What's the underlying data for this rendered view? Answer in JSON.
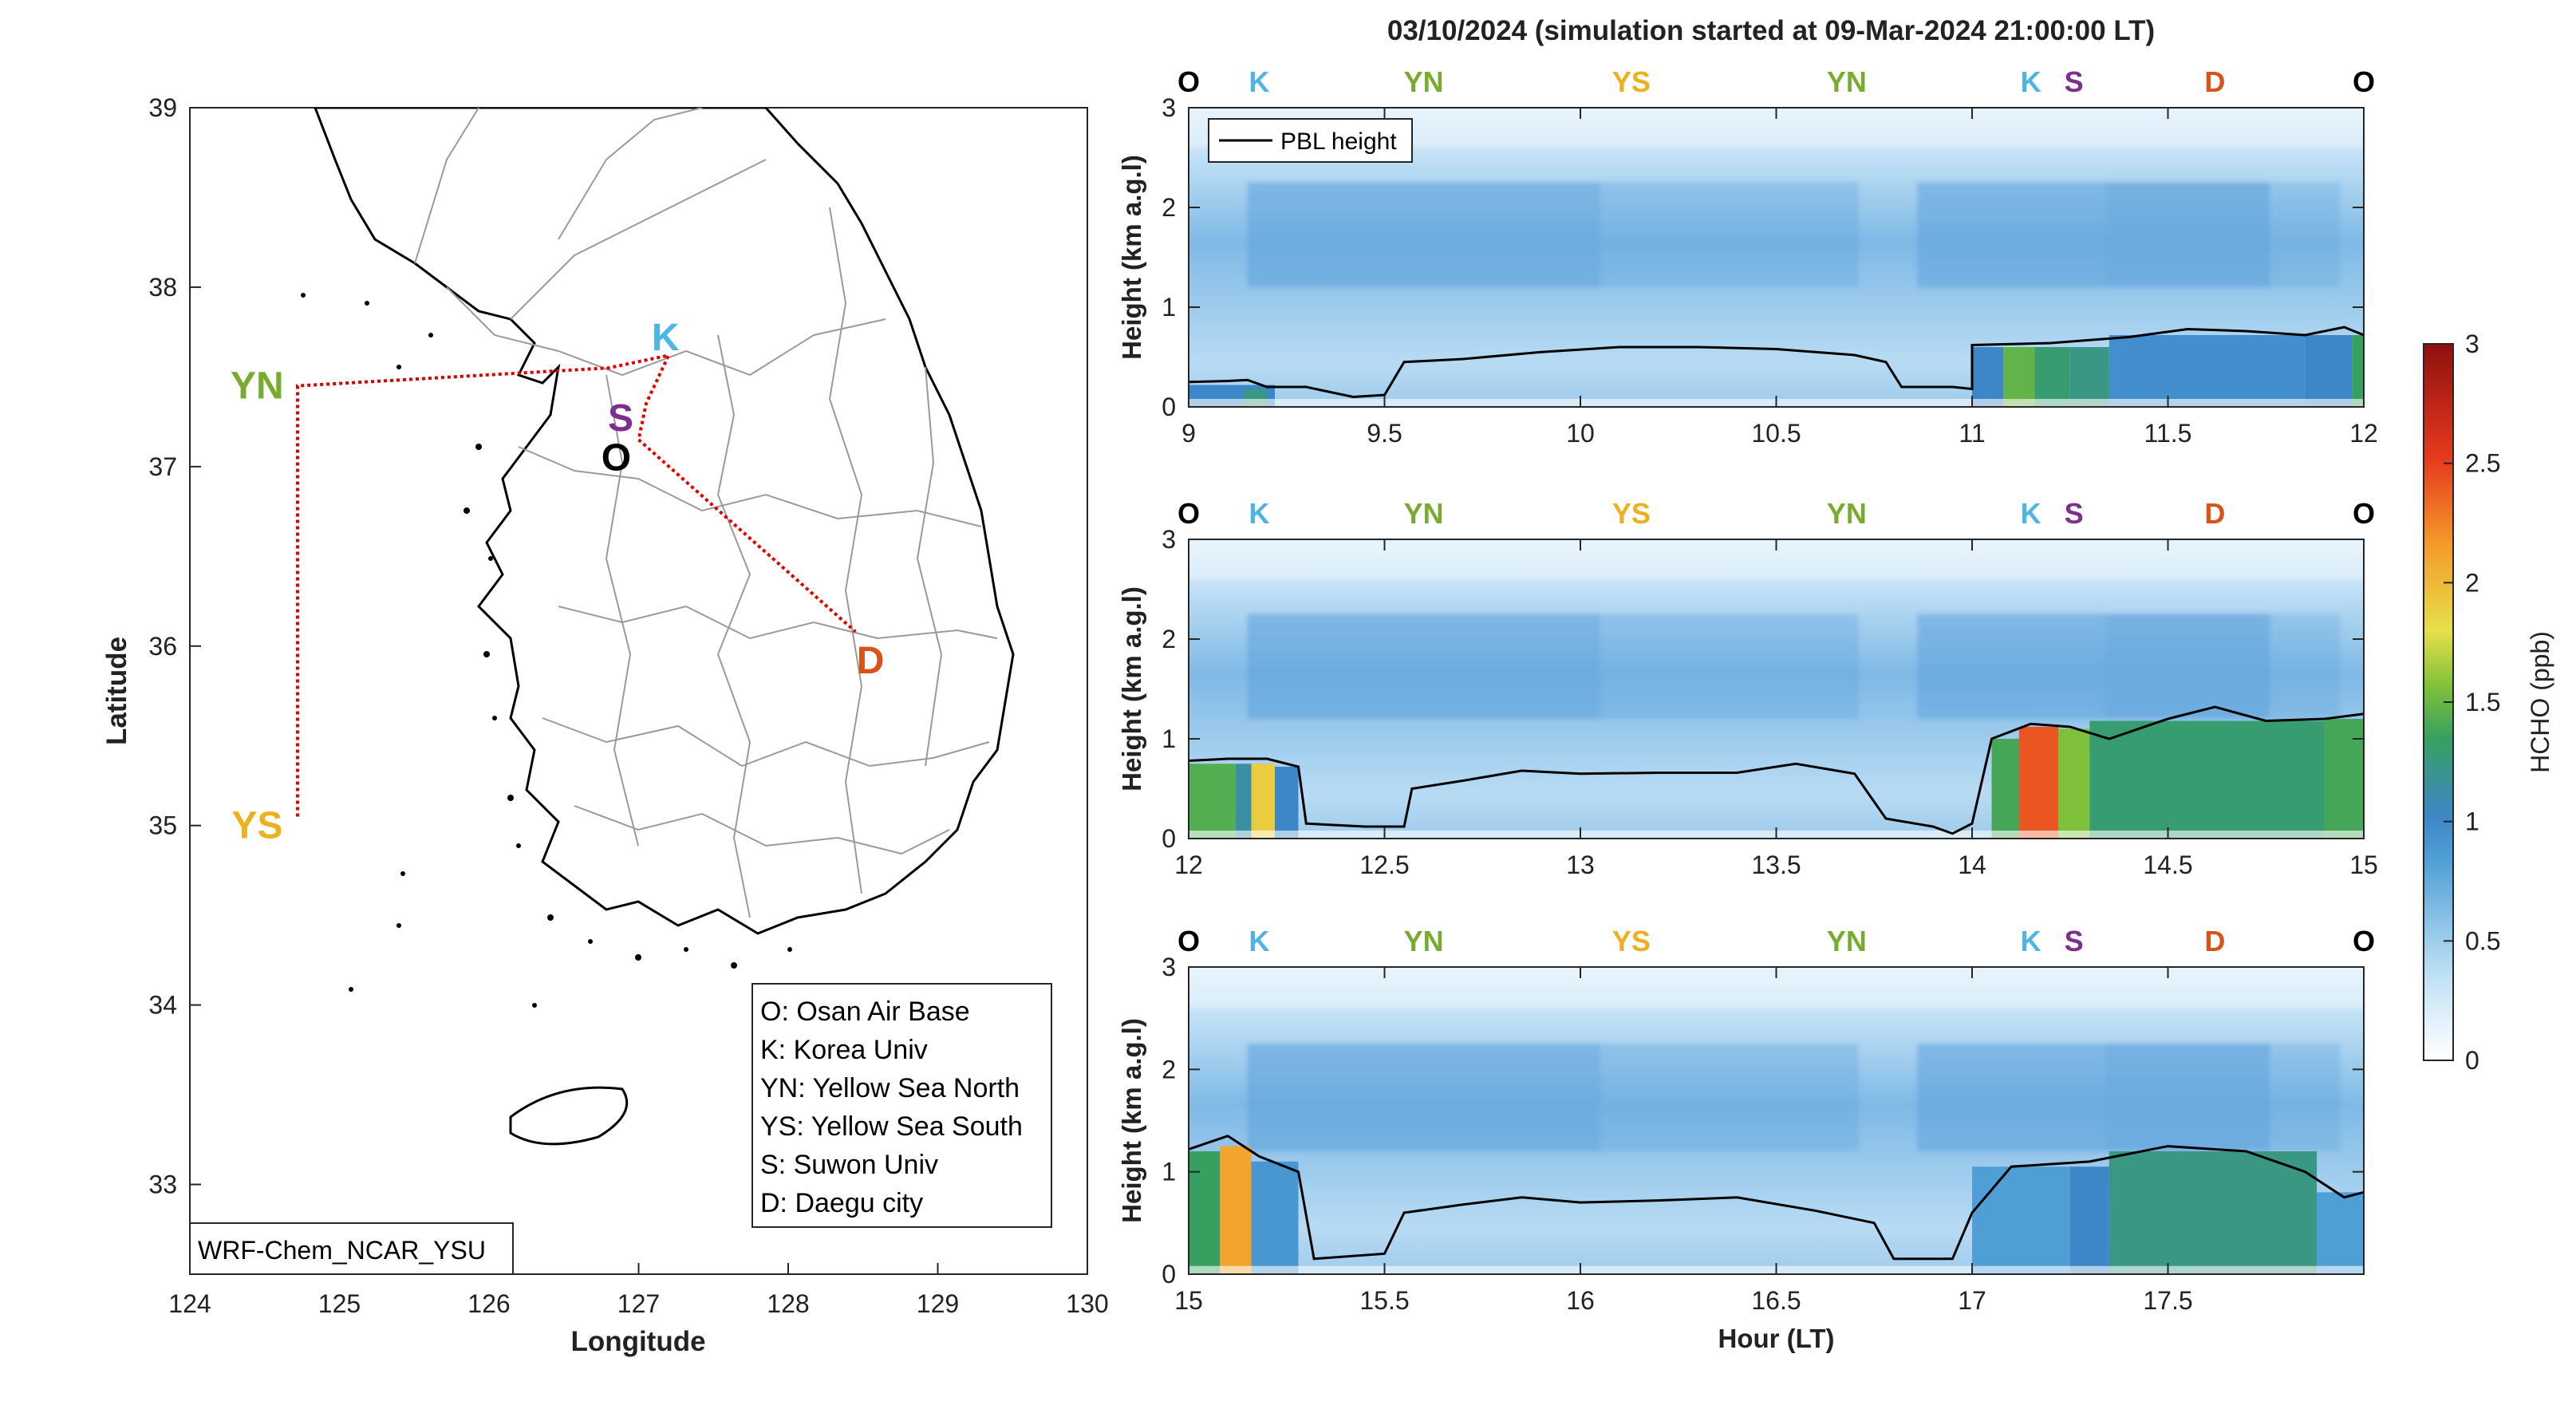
{
  "title": "03/10/2024 (simulation started at 09-Mar-2024 21:00:00 LT)",
  "colors": {
    "O": "#000000",
    "K": "#4db4e6",
    "YN": "#78ab30",
    "YS": "#edb120",
    "S": "#7e2f8e",
    "D": "#d95319",
    "route": "#e00000"
  },
  "chart_data": [
    {
      "type": "map",
      "name": "route-map",
      "xlabel": "Longitude",
      "ylabel": "Latitude",
      "xlim": [
        124,
        130
      ],
      "ylim": [
        32.5,
        39
      ],
      "xticks": [
        124,
        125,
        126,
        127,
        128,
        129,
        130
      ],
      "yticks": [
        33,
        34,
        35,
        36,
        37,
        38,
        39
      ],
      "model_label": "WRF-Chem_NCAR_YSU",
      "sites": [
        {
          "code": "K",
          "lon": 127.18,
          "lat": 37.72
        },
        {
          "code": "YN",
          "lon": 124.45,
          "lat": 37.45
        },
        {
          "code": "YS",
          "lon": 124.45,
          "lat": 35.0
        },
        {
          "code": "S",
          "lon": 126.88,
          "lat": 37.27
        },
        {
          "code": "O",
          "lon": 126.85,
          "lat": 37.05
        },
        {
          "code": "D",
          "lon": 128.55,
          "lat": 35.92
        }
      ],
      "route": [
        [
          124.72,
          35.05
        ],
        [
          124.72,
          37.45
        ],
        [
          126.8,
          37.55
        ],
        [
          127.2,
          37.62
        ],
        [
          127.05,
          37.35
        ],
        [
          127.0,
          37.15
        ],
        [
          128.45,
          36.08
        ]
      ],
      "legend": [
        "O: Osan Air Base",
        "K: Korea Univ",
        "YN: Yellow Sea North",
        "YS: Yellow Sea South",
        "S: Suwon Univ",
        "D: Daegu city"
      ]
    },
    {
      "type": "heatmap",
      "name": "curtain-9-12",
      "ylabel": "Height (km a.g.l)",
      "xlim": [
        9,
        12
      ],
      "ylim": [
        0,
        3
      ],
      "xticks": [
        "9",
        "9.5",
        "10",
        "10.5",
        "11",
        "11.5",
        "12"
      ],
      "yticks": [
        "0",
        "1",
        "2",
        "3"
      ],
      "legend": "PBL height",
      "site_labels": [
        {
          "code": "O",
          "x": 9.0
        },
        {
          "code": "K",
          "x": 9.18
        },
        {
          "code": "YN",
          "x": 9.6
        },
        {
          "code": "YS",
          "x": 10.13
        },
        {
          "code": "YN",
          "x": 10.68
        },
        {
          "code": "K",
          "x": 11.15
        },
        {
          "code": "S",
          "x": 11.26
        },
        {
          "code": "D",
          "x": 11.62
        },
        {
          "code": "O",
          "x": 12.0
        }
      ],
      "pbl": [
        [
          9.0,
          0.25
        ],
        [
          9.1,
          0.26
        ],
        [
          9.15,
          0.27
        ],
        [
          9.2,
          0.2
        ],
        [
          9.3,
          0.2
        ],
        [
          9.42,
          0.1
        ],
        [
          9.5,
          0.12
        ],
        [
          9.55,
          0.45
        ],
        [
          9.7,
          0.48
        ],
        [
          9.9,
          0.55
        ],
        [
          10.1,
          0.6
        ],
        [
          10.3,
          0.6
        ],
        [
          10.5,
          0.58
        ],
        [
          10.7,
          0.52
        ],
        [
          10.78,
          0.45
        ],
        [
          10.82,
          0.2
        ],
        [
          10.95,
          0.2
        ],
        [
          11.0,
          0.18
        ],
        [
          11.0,
          0.62
        ],
        [
          11.2,
          0.64
        ],
        [
          11.4,
          0.7
        ],
        [
          11.55,
          0.78
        ],
        [
          11.7,
          0.76
        ],
        [
          11.85,
          0.72
        ],
        [
          11.95,
          0.8
        ],
        [
          12.0,
          0.72
        ]
      ],
      "hcho": [
        {
          "x0": 9.0,
          "x1": 9.22,
          "top": 0.22,
          "ppb": 1.0
        },
        {
          "x0": 9.14,
          "x1": 9.2,
          "top": 0.18,
          "ppb": 1.2
        },
        {
          "x0": 11.0,
          "x1": 11.08,
          "top": 0.6,
          "ppb": 1.0
        },
        {
          "x0": 11.08,
          "x1": 11.16,
          "top": 0.6,
          "ppb": 1.45
        },
        {
          "x0": 11.16,
          "x1": 11.25,
          "top": 0.6,
          "ppb": 1.25
        },
        {
          "x0": 11.25,
          "x1": 11.35,
          "top": 0.6,
          "ppb": 1.2
        },
        {
          "x0": 11.35,
          "x1": 11.85,
          "top": 0.72,
          "ppb": 0.95
        },
        {
          "x0": 11.85,
          "x1": 11.97,
          "top": 0.72,
          "ppb": 1.0
        },
        {
          "x0": 11.97,
          "x1": 12.0,
          "top": 0.72,
          "ppb": 1.3
        }
      ]
    },
    {
      "type": "heatmap",
      "name": "curtain-12-15",
      "ylabel": "Height (km a.g.l)",
      "xlim": [
        12,
        15
      ],
      "ylim": [
        0,
        3
      ],
      "xticks": [
        "12",
        "12.5",
        "13",
        "13.5",
        "14",
        "14.5",
        "15"
      ],
      "yticks": [
        "0",
        "1",
        "2",
        "3"
      ],
      "site_labels": [
        {
          "code": "O",
          "x": 12.0
        },
        {
          "code": "K",
          "x": 12.18
        },
        {
          "code": "YN",
          "x": 12.6
        },
        {
          "code": "YS",
          "x": 13.13
        },
        {
          "code": "YN",
          "x": 13.68
        },
        {
          "code": "K",
          "x": 14.15
        },
        {
          "code": "S",
          "x": 14.26
        },
        {
          "code": "D",
          "x": 14.62
        },
        {
          "code": "O",
          "x": 15.0
        }
      ],
      "pbl": [
        [
          12.0,
          0.78
        ],
        [
          12.1,
          0.8
        ],
        [
          12.2,
          0.8
        ],
        [
          12.28,
          0.72
        ],
        [
          12.3,
          0.15
        ],
        [
          12.45,
          0.12
        ],
        [
          12.55,
          0.12
        ],
        [
          12.57,
          0.5
        ],
        [
          12.7,
          0.58
        ],
        [
          12.85,
          0.68
        ],
        [
          13.0,
          0.65
        ],
        [
          13.2,
          0.66
        ],
        [
          13.4,
          0.66
        ],
        [
          13.55,
          0.75
        ],
        [
          13.7,
          0.65
        ],
        [
          13.78,
          0.2
        ],
        [
          13.9,
          0.12
        ],
        [
          13.95,
          0.05
        ],
        [
          14.0,
          0.15
        ],
        [
          14.05,
          1.0
        ],
        [
          14.15,
          1.15
        ],
        [
          14.25,
          1.12
        ],
        [
          14.35,
          1.0
        ],
        [
          14.5,
          1.2
        ],
        [
          14.62,
          1.32
        ],
        [
          14.75,
          1.18
        ],
        [
          14.9,
          1.2
        ],
        [
          15.0,
          1.25
        ]
      ],
      "hcho": [
        {
          "x0": 12.0,
          "x1": 12.12,
          "top": 0.75,
          "ppb": 1.4
        },
        {
          "x0": 12.12,
          "x1": 12.16,
          "top": 0.75,
          "ppb": 1.1
        },
        {
          "x0": 12.16,
          "x1": 12.22,
          "top": 0.75,
          "ppb": 1.9
        },
        {
          "x0": 12.22,
          "x1": 12.28,
          "top": 0.72,
          "ppb": 1.0
        },
        {
          "x0": 14.05,
          "x1": 14.12,
          "top": 1.0,
          "ppb": 1.35
        },
        {
          "x0": 14.12,
          "x1": 14.22,
          "top": 1.12,
          "ppb": 2.4
        },
        {
          "x0": 14.22,
          "x1": 14.3,
          "top": 1.1,
          "ppb": 1.55
        },
        {
          "x0": 14.3,
          "x1": 14.9,
          "top": 1.18,
          "ppb": 1.25
        },
        {
          "x0": 14.9,
          "x1": 15.0,
          "top": 1.2,
          "ppb": 1.35
        }
      ]
    },
    {
      "type": "heatmap",
      "name": "curtain-15-18",
      "ylabel": "Height (km a.g.l)",
      "xlabel": "Hour (LT)",
      "xlim": [
        15,
        18
      ],
      "ylim": [
        0,
        3
      ],
      "xticks": [
        "15",
        "15.5",
        "16",
        "16.5",
        "17",
        "17.5"
      ],
      "yticks": [
        "0",
        "1",
        "2",
        "3"
      ],
      "site_labels": [
        {
          "code": "O",
          "x": 15.0
        },
        {
          "code": "K",
          "x": 15.18
        },
        {
          "code": "YN",
          "x": 15.6
        },
        {
          "code": "YS",
          "x": 16.13
        },
        {
          "code": "YN",
          "x": 16.68
        },
        {
          "code": "K",
          "x": 17.15
        },
        {
          "code": "S",
          "x": 17.26
        },
        {
          "code": "D",
          "x": 17.62
        },
        {
          "code": "O",
          "x": 18.0
        }
      ],
      "pbl": [
        [
          15.0,
          1.22
        ],
        [
          15.1,
          1.35
        ],
        [
          15.18,
          1.15
        ],
        [
          15.28,
          1.0
        ],
        [
          15.32,
          0.15
        ],
        [
          15.5,
          0.2
        ],
        [
          15.55,
          0.6
        ],
        [
          15.7,
          0.68
        ],
        [
          15.85,
          0.75
        ],
        [
          16.0,
          0.7
        ],
        [
          16.2,
          0.72
        ],
        [
          16.4,
          0.75
        ],
        [
          16.6,
          0.62
        ],
        [
          16.75,
          0.5
        ],
        [
          16.8,
          0.15
        ],
        [
          16.95,
          0.15
        ],
        [
          17.0,
          0.6
        ],
        [
          17.1,
          1.05
        ],
        [
          17.3,
          1.1
        ],
        [
          17.5,
          1.25
        ],
        [
          17.7,
          1.2
        ],
        [
          17.85,
          1.0
        ],
        [
          17.95,
          0.75
        ],
        [
          18.0,
          0.8
        ]
      ],
      "hcho": [
        {
          "x0": 15.0,
          "x1": 15.08,
          "top": 1.2,
          "ppb": 1.3
        },
        {
          "x0": 15.08,
          "x1": 15.16,
          "top": 1.25,
          "ppb": 2.1
        },
        {
          "x0": 15.16,
          "x1": 15.28,
          "top": 1.1,
          "ppb": 0.9
        },
        {
          "x0": 17.0,
          "x1": 17.25,
          "top": 1.05,
          "ppb": 0.85
        },
        {
          "x0": 17.25,
          "x1": 17.35,
          "top": 1.05,
          "ppb": 1.0
        },
        {
          "x0": 17.35,
          "x1": 17.88,
          "top": 1.2,
          "ppb": 1.2
        },
        {
          "x0": 17.88,
          "x1": 18.0,
          "top": 0.8,
          "ppb": 0.85
        }
      ]
    }
  ],
  "colorbar": {
    "label": "HCHO (ppb)",
    "range": [
      0,
      3
    ],
    "ticks": [
      "0",
      "0.5",
      "1",
      "1.5",
      "2",
      "2.5",
      "3"
    ]
  }
}
